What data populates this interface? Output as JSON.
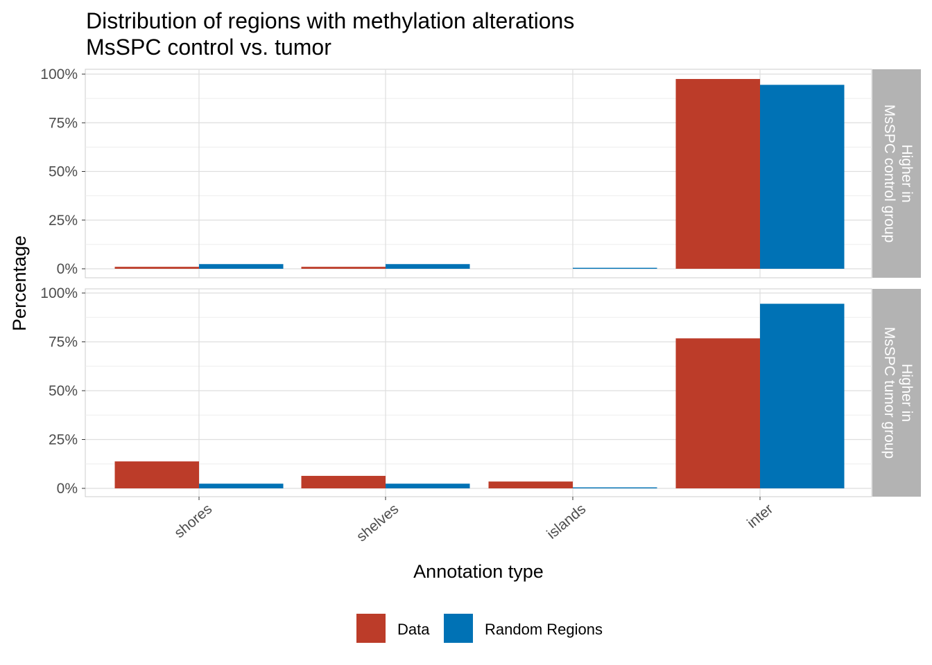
{
  "chart_data": {
    "type": "bar",
    "title": "Distribution of regions with methylation alterations",
    "subtitle": "MsSPC control vs. tumor",
    "xlabel": "Annotation type",
    "ylabel": "Percentage",
    "categories": [
      "shores",
      "shelves",
      "islands",
      "inter"
    ],
    "ylim": [
      0,
      100
    ],
    "yticks": [
      0,
      25,
      50,
      75,
      100
    ],
    "ytick_labels": [
      "0%",
      "25%",
      "50%",
      "75%",
      "100%"
    ],
    "grid": true,
    "legend_position": "bottom",
    "colors": {
      "Data": "#bc3c29",
      "Random Regions": "#0072b5"
    },
    "legend_labels": [
      "Data",
      "Random Regions"
    ],
    "panels": [
      {
        "strip_lines": [
          "Higher in",
          "MsSPC control group"
        ],
        "series": [
          {
            "name": "Data",
            "values": [
              1.0,
              1.0,
              0.0,
              97.5
            ]
          },
          {
            "name": "Random Regions",
            "values": [
              2.4,
              2.4,
              0.5,
              94.5
            ]
          }
        ]
      },
      {
        "strip_lines": [
          "Higher in",
          "MsSPC tumor group"
        ],
        "series": [
          {
            "name": "Data",
            "values": [
              13.8,
              6.4,
              3.5,
              76.8
            ]
          },
          {
            "name": "Random Regions",
            "values": [
              2.4,
              2.4,
              0.5,
              94.5
            ]
          }
        ]
      }
    ]
  }
}
